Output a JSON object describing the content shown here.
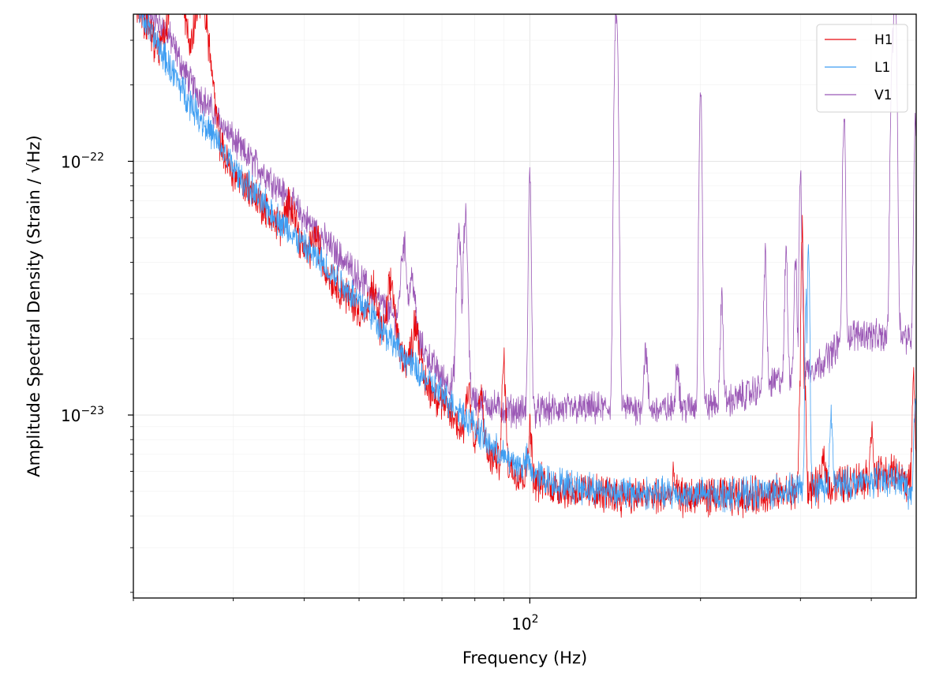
{
  "chart_data": {
    "type": "line",
    "xlabel": "Frequency (Hz)",
    "ylabel_prefix": "Amplitude Spectral Density (Strain / ",
    "ylabel_radicand": "Hz",
    "ylabel_suffix": ")",
    "xscale": "log",
    "yscale": "log",
    "xlim": [
      20,
      480
    ],
    "ylim": [
      1.9e-24,
      3.8e-22
    ],
    "x_ticks": [
      {
        "value": 100,
        "label": "10",
        "exp": "2"
      }
    ],
    "y_ticks": [
      {
        "value": 1e-23,
        "label": "10",
        "exp": "−23"
      },
      {
        "value": 1e-22,
        "label": "10",
        "exp": "−22"
      }
    ],
    "grid": true,
    "legend_position": "top-right",
    "series": [
      {
        "name": "H1",
        "color": "#e8090e",
        "noise_amp": 0.06,
        "points": [
          [
            20,
            4.5e-22
          ],
          [
            22,
            2.8e-22
          ],
          [
            25,
            2.1e-22
          ],
          [
            27,
            1.3e-22
          ],
          [
            30,
            9e-23
          ],
          [
            33,
            7.2e-23
          ],
          [
            36,
            5.5e-23
          ],
          [
            40,
            4.4e-23
          ],
          [
            45,
            3.4e-23
          ],
          [
            50,
            2.6e-23
          ],
          [
            55,
            2.1e-23
          ],
          [
            60,
            1.7e-23
          ],
          [
            65,
            1.35e-23
          ],
          [
            70,
            1.12e-23
          ],
          [
            75,
            9e-24
          ],
          [
            80,
            7.3e-24
          ],
          [
            90,
            6.4e-24
          ],
          [
            100,
            5.6e-24
          ],
          [
            110,
            5.2e-24
          ],
          [
            130,
            4.9e-24
          ],
          [
            150,
            4.8e-24
          ],
          [
            200,
            4.75e-24
          ],
          [
            250,
            4.8e-24
          ],
          [
            300,
            5e-24
          ],
          [
            350,
            5.3e-24
          ],
          [
            400,
            5.7e-24
          ],
          [
            440,
            5.9e-24
          ],
          [
            460,
            5.6e-24
          ],
          [
            480,
            4.6e-24
          ]
        ],
        "lines": [
          [
            24,
            5e-22,
            0.018
          ],
          [
            26.5,
            4.2e-22,
            0.018
          ],
          [
            38,
            6.8e-23,
            0.012
          ],
          [
            42,
            5e-23,
            0.01
          ],
          [
            53,
            3.1e-23,
            0.008
          ],
          [
            57,
            3.3e-23,
            0.008
          ],
          [
            63,
            2.3e-23,
            0.008
          ],
          [
            78,
            1.3e-23,
            0.006
          ],
          [
            82,
            1.2e-23,
            0.006
          ],
          [
            90,
            1.6e-23,
            0.004
          ],
          [
            100,
            9e-24,
            0.004
          ],
          [
            180,
            5.6e-24,
            0.004
          ],
          [
            300,
            1.3e-23,
            0.003
          ],
          [
            302,
            5.5e-23,
            0.0025
          ],
          [
            305,
            1.5e-23,
            0.003
          ],
          [
            330,
            7e-24,
            0.004
          ],
          [
            400,
            9e-24,
            0.003
          ],
          [
            475,
            1.5e-23,
            0.003
          ]
        ]
      },
      {
        "name": "L1",
        "color": "#3f9ef2",
        "noise_amp": 0.05,
        "points": [
          [
            20,
            4.5e-22
          ],
          [
            22,
            2.9e-22
          ],
          [
            25,
            1.75e-22
          ],
          [
            28,
            1.2e-22
          ],
          [
            31,
            8.5e-23
          ],
          [
            35,
            6.3e-23
          ],
          [
            40,
            4.6e-23
          ],
          [
            45,
            3.6e-23
          ],
          [
            50,
            2.8e-23
          ],
          [
            55,
            2.2e-23
          ],
          [
            60,
            1.7e-23
          ],
          [
            65,
            1.4e-23
          ],
          [
            70,
            1.2e-23
          ],
          [
            75,
            1.05e-23
          ],
          [
            80,
            9e-24
          ],
          [
            85,
            7.6e-24
          ],
          [
            90,
            6.8e-24
          ],
          [
            100,
            6e-24
          ],
          [
            110,
            5.4e-24
          ],
          [
            130,
            5.1e-24
          ],
          [
            150,
            4.95e-24
          ],
          [
            200,
            4.85e-24
          ],
          [
            250,
            4.9e-24
          ],
          [
            300,
            5.1e-24
          ],
          [
            350,
            5.3e-24
          ],
          [
            400,
            5.5e-24
          ],
          [
            440,
            5.6e-24
          ],
          [
            460,
            5.3e-24
          ],
          [
            480,
            4.3e-24
          ]
        ],
        "lines": [
          [
            52,
            2.6e-23,
            0.01
          ],
          [
            54,
            1.9e-23,
            0.01
          ],
          [
            85,
            7.6e-24,
            0.008
          ],
          [
            99,
            6.6e-24,
            0.005
          ],
          [
            307,
            2.8e-23,
            0.0025
          ],
          [
            310,
            4.9e-23,
            0.0025
          ],
          [
            340,
            1e-23,
            0.003
          ],
          [
            478,
            1.1e-23,
            0.003
          ]
        ]
      },
      {
        "name": "V1",
        "color": "#9b59b6",
        "noise_amp": 0.05,
        "points": [
          [
            20,
            4.5e-22
          ],
          [
            23,
            3.2e-22
          ],
          [
            25,
            2.1e-22
          ],
          [
            28,
            1.5e-22
          ],
          [
            31,
            1.1e-22
          ],
          [
            35,
            8.5e-23
          ],
          [
            40,
            6e-23
          ],
          [
            45,
            4.5e-23
          ],
          [
            50,
            3.5e-23
          ],
          [
            55,
            2.7e-23
          ],
          [
            60,
            2.2e-23
          ],
          [
            65,
            1.8e-23
          ],
          [
            70,
            1.4e-23
          ],
          [
            75,
            1.25e-23
          ],
          [
            80,
            1.15e-23
          ],
          [
            90,
            1.05e-23
          ],
          [
            100,
            1.03e-23
          ],
          [
            110,
            1.05e-23
          ],
          [
            130,
            1.06e-23
          ],
          [
            150,
            1.07e-23
          ],
          [
            170,
            1.05e-23
          ],
          [
            200,
            1.08e-23
          ],
          [
            230,
            1.15e-23
          ],
          [
            260,
            1.3e-23
          ],
          [
            290,
            1.45e-23
          ],
          [
            320,
            1.55e-23
          ],
          [
            340,
            1.75e-23
          ],
          [
            360,
            2.05e-23
          ],
          [
            390,
            2.1e-23
          ],
          [
            420,
            2e-23
          ],
          [
            450,
            2.1e-23
          ],
          [
            470,
            2e-23
          ],
          [
            480,
            3e-23
          ]
        ],
        "lines": [
          [
            36,
            4e-23,
            0.01
          ],
          [
            46,
            2.9e-23,
            0.008
          ],
          [
            60,
            4.7e-23,
            0.007
          ],
          [
            62,
            3.5e-23,
            0.007
          ],
          [
            75,
            5.3e-23,
            0.005
          ],
          [
            77,
            6e-23,
            0.005
          ],
          [
            100,
            8.8e-23,
            0.003
          ],
          [
            142,
            4e-22,
            0.004
          ],
          [
            160,
            1.8e-23,
            0.004
          ],
          [
            182,
            1.6e-23,
            0.004
          ],
          [
            200,
            2e-22,
            0.003
          ],
          [
            218,
            3e-23,
            0.003
          ],
          [
            260,
            4.4e-23,
            0.003
          ],
          [
            283,
            4.4e-23,
            0.003
          ],
          [
            294,
            4.2e-23,
            0.003
          ],
          [
            300,
            9.5e-23,
            0.0025
          ],
          [
            302,
            3.8e-23,
            0.0025
          ],
          [
            358,
            1.5e-22,
            0.003
          ],
          [
            436,
            3e-22,
            0.004
          ],
          [
            440,
            5e-22,
            0.004
          ],
          [
            478,
            1.5e-22,
            0.003
          ]
        ]
      }
    ]
  }
}
